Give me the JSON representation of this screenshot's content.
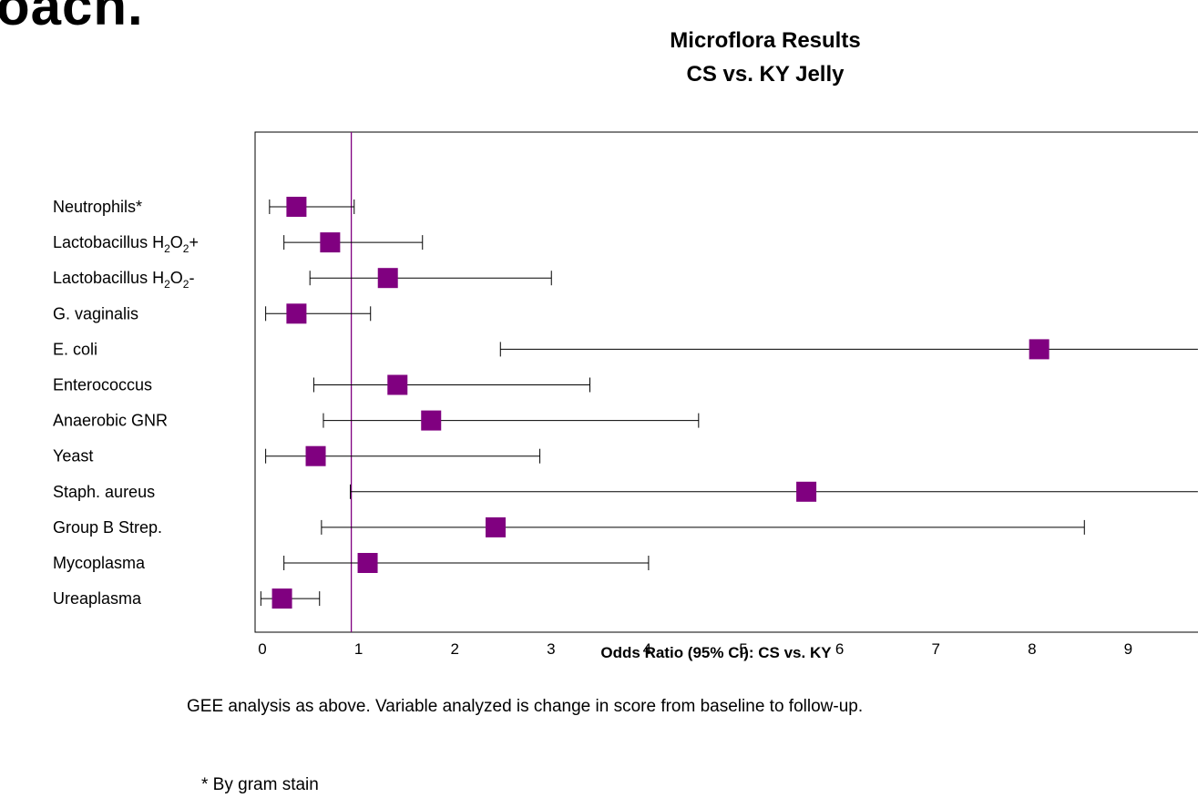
{
  "heading_fragment": "oach.",
  "chart_data": {
    "type": "forest",
    "title": "Microflora Results",
    "subtitle": "CS vs. KY Jelly",
    "xlabel": "Odds Ratio (95% CI): CS vs. KY",
    "xlim": [
      0,
      9.8
    ],
    "x_ticks": [
      0,
      1,
      2,
      3,
      4,
      5,
      6,
      7,
      8,
      9
    ],
    "reference_line": 1,
    "marker_color": "#800080",
    "reference_color": "#800080",
    "grid": false,
    "rows": [
      {
        "label": "Neutrophils*",
        "or": 0.43,
        "lo": 0.15,
        "hi": 1.03
      },
      {
        "label": "Lactobacillus H2O2+",
        "or": 0.78,
        "lo": 0.3,
        "hi": 1.74
      },
      {
        "label": "Lactobacillus H2O2-",
        "or": 1.38,
        "lo": 0.57,
        "hi": 3.08
      },
      {
        "label": "G. vaginalis",
        "or": 0.43,
        "lo": 0.11,
        "hi": 1.2
      },
      {
        "label": "E. coli",
        "or": 8.15,
        "lo": 2.55,
        "hi": 9.8,
        "hi_truncated": true
      },
      {
        "label": "Enterococcus",
        "or": 1.48,
        "lo": 0.61,
        "hi": 3.48
      },
      {
        "label": "Anaerobic GNR",
        "or": 1.83,
        "lo": 0.71,
        "hi": 4.61
      },
      {
        "label": "Yeast",
        "or": 0.63,
        "lo": 0.11,
        "hi": 2.96
      },
      {
        "label": "Staph. aureus",
        "or": 5.73,
        "lo": 0.99,
        "hi": 9.8,
        "hi_truncated": true
      },
      {
        "label": "Group B Strep.",
        "or": 2.5,
        "lo": 0.69,
        "hi": 8.62
      },
      {
        "label": "Mycoplasma",
        "or": 1.17,
        "lo": 0.3,
        "hi": 4.09
      },
      {
        "label": "Ureaplasma",
        "or": 0.28,
        "lo": 0.06,
        "hi": 0.67
      }
    ]
  },
  "notes": {
    "analysis": "GEE analysis as above. Variable analyzed is change in score from baseline to follow-up.",
    "footnote": "* By gram stain"
  }
}
